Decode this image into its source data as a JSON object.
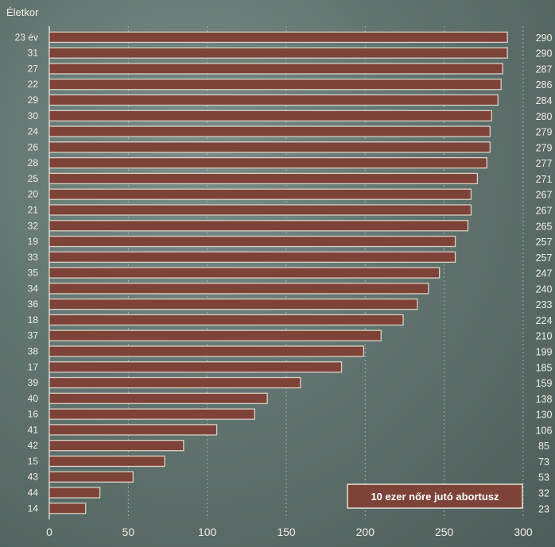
{
  "chart_data": {
    "type": "bar",
    "orientation": "horizontal",
    "ylabel": "Életkor",
    "legend": "10 ezer nőre jutó abortusz",
    "legend_position": "bottom-right",
    "categories": [
      "23 év",
      "31",
      "27",
      "22",
      "29",
      "30",
      "24",
      "26",
      "28",
      "25",
      "20",
      "21",
      "32",
      "19",
      "33",
      "35",
      "34",
      "36",
      "18",
      "37",
      "38",
      "17",
      "39",
      "40",
      "16",
      "41",
      "42",
      "15",
      "43",
      "44",
      "14"
    ],
    "values": [
      290,
      290,
      287,
      286,
      284,
      280,
      279,
      279,
      277,
      271,
      267,
      267,
      265,
      257,
      257,
      247,
      240,
      233,
      224,
      210,
      199,
      185,
      159,
      138,
      130,
      106,
      85,
      73,
      53,
      32,
      23
    ],
    "xlim": [
      0,
      300
    ],
    "xticks": [
      0,
      50,
      100,
      150,
      200,
      250,
      300
    ],
    "grid": true,
    "colors": {
      "bar": "#7d4238",
      "bar_border": "#d8d0c4",
      "text": "#f1ede4",
      "background": "#62746f"
    }
  }
}
